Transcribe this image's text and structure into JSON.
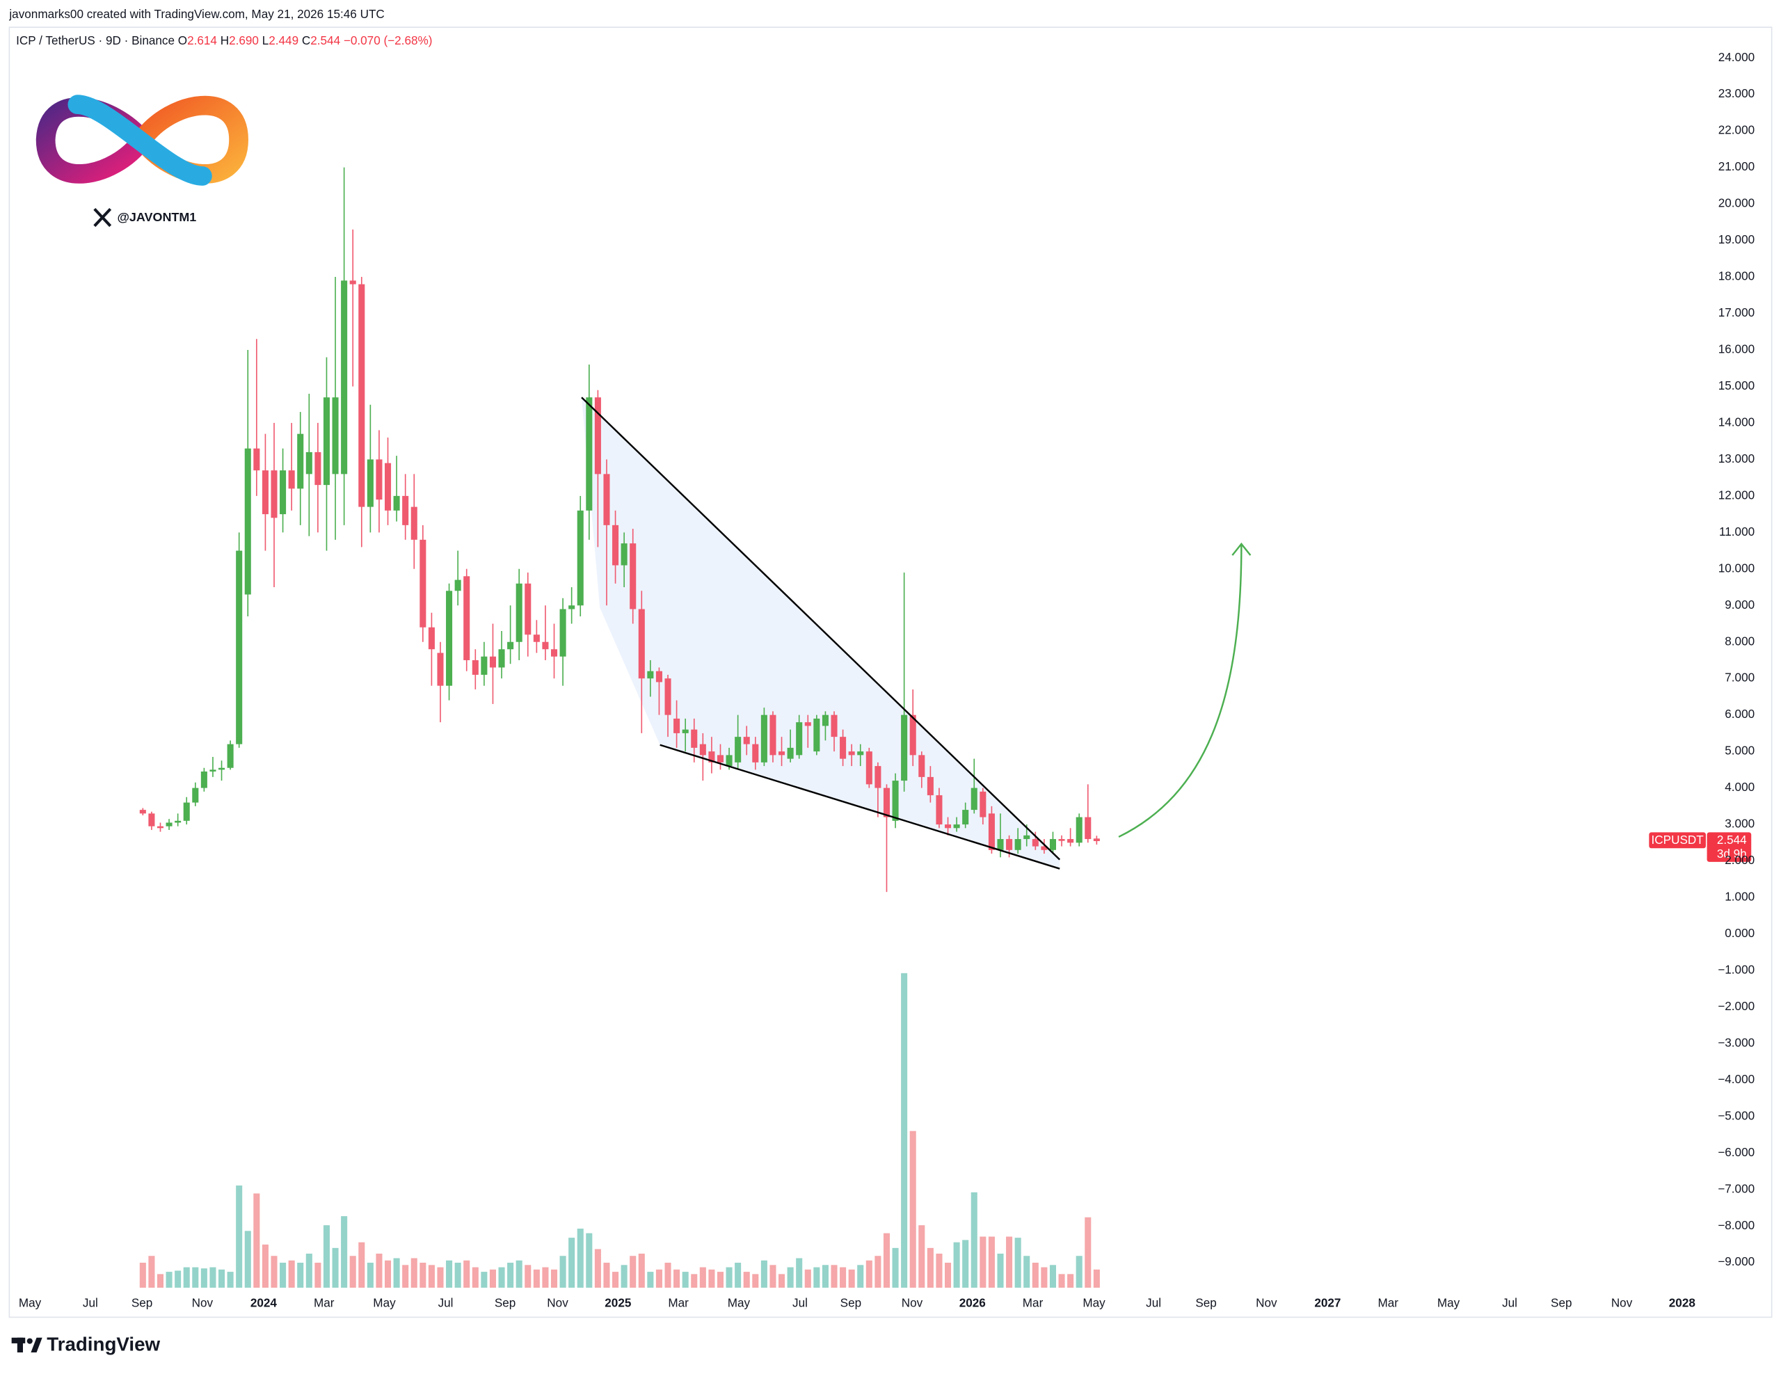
{
  "header": {
    "credit": "javonmarks00 created with TradingView.com, May 21, 2026 15:46 UTC",
    "handle": "@JAVONTM1",
    "footer_brand": "TradingView"
  },
  "legend": {
    "symbol": "ICP / TetherUS · 9D · Binance",
    "o": "O",
    "o_value": "2.614",
    "h": "H",
    "h_value": "2.690",
    "l": "L",
    "l_value": "2.449",
    "c": "C",
    "c_value": "2.544",
    "change": "−0.070 (−2.68%)"
  },
  "chart_data": {
    "type": "candlestick",
    "open": [
      3.4,
      3.3,
      2.95,
      2.95,
      3.05,
      3.1,
      3.6,
      4.0,
      4.45,
      4.5,
      4.55,
      5.2,
      9.3,
      13.3,
      12.7,
      12.7,
      11.5,
      12.7,
      12.2,
      12.6,
      13.2,
      12.3,
      12.6,
      12.6,
      17.9,
      17.8,
      11.7,
      13.0,
      12.9,
      11.6,
      12.0,
      11.7,
      10.8,
      8.4,
      7.7,
      6.8,
      9.4,
      9.8,
      7.5,
      7.1,
      7.6,
      7.3,
      7.8,
      8.0,
      9.6,
      8.2,
      8.0,
      7.8,
      7.6,
      8.9,
      9.0,
      11.6,
      14.7,
      12.6,
      11.2,
      10.1,
      10.7,
      8.9,
      7.0,
      7.2,
      7.0,
      5.9,
      5.5,
      5.6,
      5.2,
      5.0,
      4.9,
      4.6,
      4.7,
      5.4,
      5.2,
      4.7,
      6.0,
      5.0,
      4.8,
      4.9,
      5.8,
      5.0,
      5.7,
      6.0,
      5.4,
      5.0,
      4.9,
      5.0,
      4.6,
      4.0,
      3.1,
      4.2,
      6.0,
      4.9,
      4.3,
      3.8,
      3.0,
      2.9,
      3.0,
      3.4,
      3.9,
      3.3,
      2.3,
      2.6,
      2.3,
      2.6,
      2.6,
      2.4,
      2.3,
      2.6,
      2.6,
      2.5,
      3.2,
      2.614
    ],
    "high": [
      3.45,
      3.35,
      3.05,
      3.15,
      3.3,
      3.75,
      4.15,
      4.55,
      4.85,
      4.75,
      5.3,
      11.0,
      16.0,
      16.3,
      13.7,
      14.0,
      13.3,
      14.0,
      14.3,
      14.8,
      14.0,
      15.8,
      18.0,
      21.0,
      19.3,
      18.0,
      14.5,
      13.8,
      13.6,
      13.1,
      12.6,
      12.6,
      11.2,
      8.8,
      8.0,
      9.6,
      10.5,
      10.0,
      7.8,
      8.0,
      8.5,
      8.3,
      9.0,
      10.0,
      9.9,
      8.6,
      9.0,
      8.5,
      9.2,
      9.5,
      12.0,
      15.6,
      14.9,
      13.0,
      11.6,
      11.0,
      11.1,
      9.4,
      7.5,
      7.3,
      7.1,
      6.4,
      5.9,
      5.9,
      5.5,
      5.4,
      5.2,
      5.1,
      6.0,
      5.7,
      5.4,
      6.2,
      6.1,
      5.4,
      5.6,
      6.0,
      6.0,
      6.0,
      6.1,
      6.1,
      5.6,
      5.2,
      5.2,
      5.1,
      4.7,
      4.1,
      4.4,
      9.9,
      6.7,
      5.0,
      4.6,
      4.0,
      3.2,
      3.2,
      3.6,
      4.8,
      4.0,
      3.5,
      3.3,
      2.7,
      2.9,
      3.0,
      2.8,
      2.6,
      2.8,
      2.7,
      2.9,
      3.3,
      4.1,
      2.69
    ],
    "low": [
      3.25,
      2.85,
      2.8,
      2.85,
      2.95,
      3.0,
      3.5,
      3.9,
      4.3,
      4.2,
      4.5,
      5.1,
      8.7,
      12.0,
      10.5,
      9.5,
      11.0,
      11.6,
      11.2,
      10.9,
      11.0,
      10.5,
      10.8,
      11.2,
      15.0,
      10.6,
      11.0,
      11.0,
      11.2,
      11.3,
      10.8,
      10.0,
      8.0,
      6.8,
      5.8,
      6.4,
      9.0,
      7.2,
      6.7,
      6.8,
      6.3,
      7.0,
      7.4,
      7.5,
      7.6,
      7.7,
      7.5,
      7.0,
      6.8,
      8.5,
      8.7,
      10.8,
      10.6,
      9.0,
      9.6,
      9.5,
      8.5,
      5.5,
      6.5,
      6.0,
      5.4,
      5.1,
      5.0,
      4.7,
      4.2,
      4.4,
      4.5,
      4.5,
      4.5,
      4.9,
      4.5,
      4.6,
      4.7,
      4.6,
      4.7,
      4.8,
      5.1,
      4.9,
      5.3,
      5.0,
      4.6,
      4.6,
      4.6,
      4.0,
      3.2,
      1.15,
      2.9,
      3.9,
      4.6,
      4.0,
      3.6,
      2.9,
      2.7,
      2.8,
      2.9,
      3.3,
      3.0,
      2.2,
      2.1,
      2.1,
      2.2,
      2.4,
      2.3,
      2.2,
      2.2,
      2.4,
      2.4,
      2.4,
      2.5,
      2.449
    ],
    "close": [
      3.3,
      2.95,
      2.9,
      3.05,
      3.1,
      3.6,
      4.0,
      4.45,
      4.5,
      4.55,
      5.2,
      10.5,
      13.3,
      12.7,
      11.5,
      11.4,
      12.7,
      12.2,
      13.7,
      13.2,
      12.3,
      14.7,
      14.7,
      17.9,
      17.8,
      11.7,
      13.0,
      11.9,
      11.6,
      12.0,
      11.2,
      10.8,
      8.4,
      7.8,
      6.8,
      9.4,
      9.7,
      7.5,
      7.1,
      7.6,
      7.3,
      7.8,
      8.0,
      9.6,
      8.2,
      8.0,
      7.8,
      7.6,
      8.9,
      9.0,
      11.6,
      14.7,
      12.6,
      11.2,
      10.1,
      10.7,
      8.9,
      7.0,
      7.2,
      6.9,
      6.0,
      5.5,
      5.6,
      5.1,
      4.9,
      4.7,
      4.7,
      4.9,
      5.4,
      5.2,
      4.7,
      6.0,
      4.9,
      4.9,
      5.1,
      5.8,
      5.7,
      5.9,
      6.0,
      5.4,
      4.8,
      4.9,
      5.0,
      4.1,
      4.0,
      3.2,
      4.2,
      6.0,
      4.9,
      4.3,
      3.8,
      3.0,
      2.9,
      3.0,
      3.4,
      4.0,
      3.2,
      2.3,
      2.6,
      2.3,
      2.6,
      2.7,
      2.4,
      2.3,
      2.6,
      2.55,
      2.5,
      3.2,
      2.6,
      2.544
    ],
    "volume": [
      22,
      28,
      12,
      14,
      15,
      18,
      18,
      17,
      18,
      16,
      14,
      90,
      50,
      83,
      38,
      28,
      22,
      24,
      22,
      30,
      22,
      55,
      35,
      63,
      28,
      40,
      22,
      30,
      24,
      26,
      20,
      26,
      22,
      20,
      18,
      24,
      22,
      24,
      18,
      14,
      16,
      18,
      22,
      24,
      20,
      16,
      18,
      16,
      28,
      44,
      52,
      48,
      34,
      22,
      14,
      20,
      28,
      30,
      14,
      16,
      22,
      16,
      14,
      12,
      18,
      16,
      14,
      18,
      22,
      14,
      12,
      24,
      20,
      12,
      18,
      26,
      16,
      18,
      20,
      20,
      18,
      16,
      20,
      24,
      28,
      48,
      35,
      277,
      138,
      55,
      35,
      30,
      22,
      40,
      42,
      84,
      45,
      45,
      30,
      45,
      44,
      28,
      22,
      18,
      20,
      12,
      12,
      28,
      62,
      16
    ],
    "up_color": "#4caf50",
    "down_color": "#ef5a6f",
    "volume_up_color": "#94d3c9",
    "volume_down_color": "#f5a7a9",
    "ticker": "ICPUSDT",
    "countdown": "3d 9h",
    "xlim": [
      -15,
      179
    ],
    "ylim": [
      -10.5,
      24.84
    ],
    "xticks": [
      {
        "value": -12.9,
        "label": "May"
      },
      {
        "value": -6.0,
        "label": "Jul"
      },
      {
        "value": -0.1,
        "label": "Sep"
      },
      {
        "value": 6.8,
        "label": "Nov"
      },
      {
        "value": 13.8,
        "label": "2024"
      },
      {
        "value": 20.7,
        "label": "Mar"
      },
      {
        "value": 27.6,
        "label": "May"
      },
      {
        "value": 34.6,
        "label": "Jul"
      },
      {
        "value": 41.4,
        "label": "Sep"
      },
      {
        "value": 47.4,
        "label": "Nov"
      },
      {
        "value": 54.3,
        "label": "2025"
      },
      {
        "value": 61.2,
        "label": "Mar"
      },
      {
        "value": 68.1,
        "label": "May"
      },
      {
        "value": 75.1,
        "label": "Jul"
      },
      {
        "value": 80.9,
        "label": "Sep"
      },
      {
        "value": 87.9,
        "label": "Nov"
      },
      {
        "value": 94.8,
        "label": "2026"
      },
      {
        "value": 101.7,
        "label": "Mar"
      },
      {
        "value": 108.7,
        "label": "May"
      },
      {
        "value": 115.5,
        "label": "Jul"
      },
      {
        "value": 121.5,
        "label": "Sep"
      },
      {
        "value": 128.4,
        "label": "Nov"
      },
      {
        "value": 135.4,
        "label": "2027"
      },
      {
        "value": 142.3,
        "label": "Mar"
      },
      {
        "value": 149.2,
        "label": "May"
      },
      {
        "value": 156.2,
        "label": "Jul"
      },
      {
        "value": 162.1,
        "label": "Sep"
      },
      {
        "value": 169.0,
        "label": "Nov"
      },
      {
        "value": 175.9,
        "label": "2028"
      }
    ],
    "yticks": [
      {
        "value": 24,
        "label": "24.000"
      },
      {
        "value": 23,
        "label": "23.000"
      },
      {
        "value": 22,
        "label": "22.000"
      },
      {
        "value": 21,
        "label": "21.000"
      },
      {
        "value": 20,
        "label": "20.000"
      },
      {
        "value": 19,
        "label": "19.000"
      },
      {
        "value": 18,
        "label": "18.000"
      },
      {
        "value": 17,
        "label": "17.000"
      },
      {
        "value": 16,
        "label": "16.000"
      },
      {
        "value": 15,
        "label": "15.000"
      },
      {
        "value": 14,
        "label": "14.000"
      },
      {
        "value": 13,
        "label": "13.000"
      },
      {
        "value": 12,
        "label": "12.000"
      },
      {
        "value": 11,
        "label": "11.000"
      },
      {
        "value": 10,
        "label": "10.000"
      },
      {
        "value": 9,
        "label": "9.000"
      },
      {
        "value": 8,
        "label": "8.000"
      },
      {
        "value": 7,
        "label": "7.000"
      },
      {
        "value": 6,
        "label": "6.000"
      },
      {
        "value": 5,
        "label": "5.000"
      },
      {
        "value": 4,
        "label": "4.000"
      },
      {
        "value": 3,
        "label": "3.000"
      },
      {
        "value": 2,
        "label": "2.000"
      },
      {
        "value": 1,
        "label": "1.000"
      },
      {
        "value": 0,
        "label": "0.000"
      },
      {
        "value": -1,
        "label": "−1.000"
      },
      {
        "value": -2,
        "label": "−2.000"
      },
      {
        "value": -3,
        "label": "−3.000"
      },
      {
        "value": -4,
        "label": "−4.000"
      },
      {
        "value": -5,
        "label": "−5.000"
      },
      {
        "value": -6,
        "label": "−6.000"
      },
      {
        "value": -7,
        "label": "−7.000"
      },
      {
        "value": -8,
        "label": "−8.000"
      },
      {
        "value": -9,
        "label": "−9.000"
      }
    ],
    "grid": false
  }
}
